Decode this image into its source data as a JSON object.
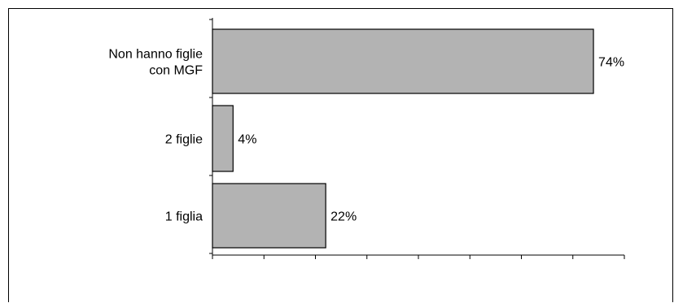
{
  "chart_data": {
    "type": "bar",
    "orientation": "horizontal",
    "categories": [
      [
        "Non hanno figlie",
        "con MGF"
      ],
      [
        "2 figlie"
      ],
      [
        "1 figlia"
      ]
    ],
    "values": [
      74,
      4,
      22
    ],
    "data_labels": [
      "74%",
      "4%",
      "22%"
    ],
    "xlim": [
      0,
      80
    ],
    "x_tick_count": 8,
    "grid": false,
    "legend": "none",
    "colors": {
      "bar_fill": "#b3b3b3",
      "bar_stroke": "#000000",
      "axis": "#000000",
      "frame": "#000000"
    }
  }
}
